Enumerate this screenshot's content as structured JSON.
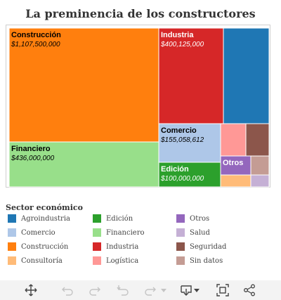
{
  "chart_data": {
    "type": "treemap",
    "title": "La preminencia de los constructores",
    "legend_title": "Sector económico",
    "legend_position": "bottom-left",
    "cells": [
      {
        "name": "Construcción",
        "value": 1107500000,
        "value_label": "$1,107,500,000",
        "color": "#ff7f0e",
        "labeled": true
      },
      {
        "name": "Financiero",
        "value": 436000000,
        "value_label": "$436,000,000",
        "color": "#98df8a",
        "labeled": true
      },
      {
        "name": "Industria",
        "value": 400125000,
        "value_label": "$400,125,000",
        "color": "#d62728",
        "labeled": true
      },
      {
        "name": "Agroindustria",
        "value": null,
        "value_label": "",
        "color": "#1f77b4",
        "labeled": false
      },
      {
        "name": "Comercio",
        "value": 155058612,
        "value_label": "$155,058,612",
        "color": "#aec7e8",
        "labeled": true
      },
      {
        "name": "Edición",
        "value": 100000000,
        "value_label": "$100,000,000",
        "color": "#2ca02c",
        "labeled": true
      },
      {
        "name": "Logística",
        "value": null,
        "value_label": "",
        "color": "#ff9896",
        "labeled": false
      },
      {
        "name": "Seguridad",
        "value": null,
        "value_label": "",
        "color": "#8c564b",
        "labeled": false
      },
      {
        "name": "Otros",
        "value": null,
        "value_label": "",
        "color": "#9467bd",
        "labeled": true
      },
      {
        "name": "Sin datos",
        "value": null,
        "value_label": "",
        "color": "#c49c94",
        "labeled": false
      },
      {
        "name": "Consultoría",
        "value": null,
        "value_label": "",
        "color": "#ffbb78",
        "labeled": false
      },
      {
        "name": "Salud",
        "value": null,
        "value_label": "",
        "color": "#c5b0d5",
        "labeled": false
      }
    ],
    "legend": [
      {
        "label": "Agroindustria",
        "color": "#1f77b4"
      },
      {
        "label": "Comercio",
        "color": "#aec7e8"
      },
      {
        "label": "Construcción",
        "color": "#ff7f0e"
      },
      {
        "label": "Consultoría",
        "color": "#ffbb78"
      },
      {
        "label": "Edición",
        "color": "#2ca02c"
      },
      {
        "label": "Financiero",
        "color": "#98df8a"
      },
      {
        "label": "Industria",
        "color": "#d62728"
      },
      {
        "label": "Logística",
        "color": "#ff9896"
      },
      {
        "label": "Otros",
        "color": "#9467bd"
      },
      {
        "label": "Salud",
        "color": "#c5b0d5"
      },
      {
        "label": "Seguridad",
        "color": "#8c564b"
      },
      {
        "label": "Sin datos",
        "color": "#c49c94"
      }
    ]
  },
  "toolbar": {
    "icons": [
      "move-icon",
      "undo-icon",
      "redo-icon",
      "reset-icon",
      "forward-icon",
      "export-icon",
      "fullscreen-icon",
      "share-icon"
    ]
  }
}
